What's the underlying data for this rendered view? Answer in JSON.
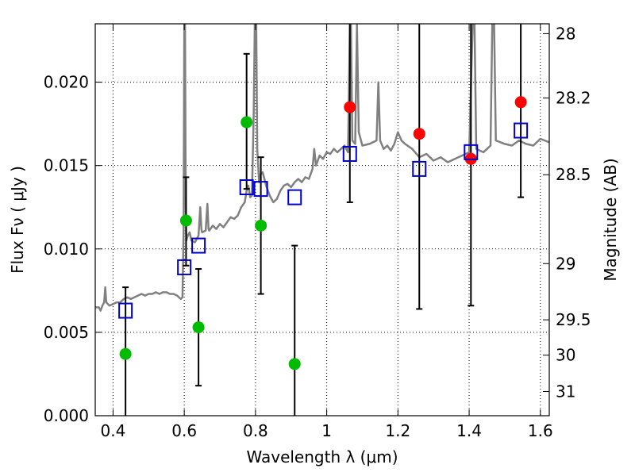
{
  "chart_data": {
    "type": "scatter",
    "xlabel": "Wavelength  λ (μm)",
    "ylabel": "Flux  Fν  ( μJy )",
    "ylabel_right": "Magnitude (AB)",
    "xlim": [
      0.35,
      1.625
    ],
    "ylim": [
      0.0,
      0.0235
    ],
    "grid": true,
    "x_ticks": [
      {
        "value": 0.4,
        "label": "0.4"
      },
      {
        "value": 0.6,
        "label": "0.6"
      },
      {
        "value": 0.8,
        "label": "0.8"
      },
      {
        "value": 1.0,
        "label": "1"
      },
      {
        "value": 1.2,
        "label": "1.2"
      },
      {
        "value": 1.4,
        "label": "1.4"
      },
      {
        "value": 1.6,
        "label": "1.6"
      }
    ],
    "y_ticks": [
      {
        "value": 0.0,
        "label": "0.000"
      },
      {
        "value": 0.005,
        "label": "0.005"
      },
      {
        "value": 0.01,
        "label": "0.010"
      },
      {
        "value": 0.015,
        "label": "0.015"
      },
      {
        "value": 0.02,
        "label": "0.020"
      }
    ],
    "right_ticks": [
      {
        "flux": 0.02291,
        "label": "28"
      },
      {
        "flux": 0.01905,
        "label": "28.2"
      },
      {
        "flux": 0.01445,
        "label": "28.5"
      },
      {
        "flux": 0.00912,
        "label": "29"
      },
      {
        "flux": 0.00575,
        "label": "29.5"
      },
      {
        "flux": 0.00363,
        "label": "30"
      },
      {
        "flux": 0.00145,
        "label": "31"
      }
    ],
    "colors": {
      "model": "#808080",
      "observed": "#00bb00",
      "upper": "#ff0000",
      "synthetic": "#0000cc",
      "errorbar": "#000000"
    },
    "model_spectrum": [
      [
        0.35,
        0.0065
      ],
      [
        0.36,
        0.0065
      ],
      [
        0.365,
        0.0063
      ],
      [
        0.37,
        0.0066
      ],
      [
        0.375,
        0.0068
      ],
      [
        0.378,
        0.0077
      ],
      [
        0.381,
        0.0068
      ],
      [
        0.39,
        0.0066
      ],
      [
        0.4,
        0.0067
      ],
      [
        0.41,
        0.0068
      ],
      [
        0.42,
        0.0068
      ],
      [
        0.43,
        0.007
      ],
      [
        0.44,
        0.0071
      ],
      [
        0.45,
        0.007
      ],
      [
        0.46,
        0.0071
      ],
      [
        0.47,
        0.0072
      ],
      [
        0.48,
        0.0073
      ],
      [
        0.49,
        0.0072
      ],
      [
        0.5,
        0.0073
      ],
      [
        0.51,
        0.0073
      ],
      [
        0.52,
        0.0074
      ],
      [
        0.53,
        0.0073
      ],
      [
        0.54,
        0.0074
      ],
      [
        0.55,
        0.0074
      ],
      [
        0.56,
        0.0073
      ],
      [
        0.57,
        0.0073
      ],
      [
        0.58,
        0.0072
      ],
      [
        0.59,
        0.007
      ],
      [
        0.595,
        0.0071
      ],
      [
        0.598,
        0.011
      ],
      [
        0.6,
        0.0235
      ],
      [
        0.602,
        0.0235
      ],
      [
        0.604,
        0.0125
      ],
      [
        0.606,
        0.0105
      ],
      [
        0.61,
        0.0108
      ],
      [
        0.615,
        0.011
      ],
      [
        0.62,
        0.0105
      ],
      [
        0.63,
        0.0104
      ],
      [
        0.64,
        0.0108
      ],
      [
        0.645,
        0.0125
      ],
      [
        0.648,
        0.0112
      ],
      [
        0.65,
        0.011
      ],
      [
        0.66,
        0.0111
      ],
      [
        0.665,
        0.0127
      ],
      [
        0.668,
        0.0112
      ],
      [
        0.67,
        0.0111
      ],
      [
        0.68,
        0.0114
      ],
      [
        0.69,
        0.0112
      ],
      [
        0.7,
        0.0115
      ],
      [
        0.71,
        0.0113
      ],
      [
        0.72,
        0.0116
      ],
      [
        0.73,
        0.0119
      ],
      [
        0.74,
        0.0118
      ],
      [
        0.75,
        0.012
      ],
      [
        0.76,
        0.0125
      ],
      [
        0.77,
        0.0128
      ],
      [
        0.775,
        0.0135
      ],
      [
        0.78,
        0.0138
      ],
      [
        0.785,
        0.0131
      ],
      [
        0.79,
        0.0132
      ],
      [
        0.795,
        0.018
      ],
      [
        0.798,
        0.0235
      ],
      [
        0.802,
        0.0235
      ],
      [
        0.805,
        0.016
      ],
      [
        0.81,
        0.014
      ],
      [
        0.815,
        0.0145
      ],
      [
        0.82,
        0.0146
      ],
      [
        0.83,
        0.0138
      ],
      [
        0.84,
        0.0132
      ],
      [
        0.85,
        0.0128
      ],
      [
        0.86,
        0.013
      ],
      [
        0.87,
        0.0135
      ],
      [
        0.88,
        0.0138
      ],
      [
        0.89,
        0.0139
      ],
      [
        0.9,
        0.0137
      ],
      [
        0.91,
        0.014
      ],
      [
        0.92,
        0.0142
      ],
      [
        0.93,
        0.014
      ],
      [
        0.94,
        0.0143
      ],
      [
        0.95,
        0.0142
      ],
      [
        0.96,
        0.0148
      ],
      [
        0.965,
        0.016
      ],
      [
        0.97,
        0.015
      ],
      [
        0.98,
        0.0156
      ],
      [
        0.99,
        0.0154
      ],
      [
        1.0,
        0.0158
      ],
      [
        1.01,
        0.0157
      ],
      [
        1.02,
        0.016
      ],
      [
        1.03,
        0.0158
      ],
      [
        1.04,
        0.016
      ],
      [
        1.05,
        0.0162
      ],
      [
        1.06,
        0.0158
      ],
      [
        1.065,
        0.0235
      ],
      [
        1.068,
        0.0235
      ],
      [
        1.072,
        0.0165
      ],
      [
        1.08,
        0.0163
      ],
      [
        1.085,
        0.0235
      ],
      [
        1.09,
        0.017
      ],
      [
        1.1,
        0.0162
      ],
      [
        1.12,
        0.0163
      ],
      [
        1.14,
        0.0165
      ],
      [
        1.145,
        0.02
      ],
      [
        1.15,
        0.0165
      ],
      [
        1.16,
        0.016
      ],
      [
        1.17,
        0.0162
      ],
      [
        1.18,
        0.0159
      ],
      [
        1.19,
        0.0163
      ],
      [
        1.2,
        0.017
      ],
      [
        1.21,
        0.0165
      ],
      [
        1.22,
        0.0163
      ],
      [
        1.24,
        0.016
      ],
      [
        1.26,
        0.0155
      ],
      [
        1.28,
        0.0157
      ],
      [
        1.3,
        0.0153
      ],
      [
        1.32,
        0.0155
      ],
      [
        1.34,
        0.0152
      ],
      [
        1.36,
        0.0154
      ],
      [
        1.38,
        0.0156
      ],
      [
        1.4,
        0.0158
      ],
      [
        1.41,
        0.0235
      ],
      [
        1.415,
        0.0235
      ],
      [
        1.42,
        0.016
      ],
      [
        1.44,
        0.0158
      ],
      [
        1.46,
        0.0162
      ],
      [
        1.465,
        0.0235
      ],
      [
        1.47,
        0.0235
      ],
      [
        1.475,
        0.0165
      ],
      [
        1.5,
        0.0163
      ],
      [
        1.52,
        0.0162
      ],
      [
        1.54,
        0.0165
      ],
      [
        1.56,
        0.0163
      ],
      [
        1.58,
        0.0162
      ],
      [
        1.6,
        0.0166
      ],
      [
        1.625,
        0.0164
      ]
    ],
    "observed_points": [
      {
        "x": 0.435,
        "y": 0.0037,
        "yerr": [
          0.0,
          0.0077
        ]
      },
      {
        "x": 0.605,
        "y": 0.0117,
        "yerr": [
          0.009,
          0.0143
        ]
      },
      {
        "x": 0.64,
        "y": 0.0053,
        "yerr": [
          0.0018,
          0.0088
        ]
      },
      {
        "x": 0.775,
        "y": 0.0176,
        "yerr": [
          0.0136,
          0.0217
        ]
      },
      {
        "x": 0.815,
        "y": 0.0114,
        "yerr": [
          0.0073,
          0.0155
        ]
      },
      {
        "x": 0.91,
        "y": 0.0031,
        "yerr": [
          0.0,
          0.0102
        ]
      }
    ],
    "upper_points": [
      {
        "x": 1.065,
        "y": 0.0185,
        "yerr": [
          0.0128,
          0.0235
        ]
      },
      {
        "x": 1.26,
        "y": 0.0169,
        "yerr": [
          0.0064,
          0.0235
        ]
      },
      {
        "x": 1.405,
        "y": 0.0154,
        "yerr": [
          0.0066,
          0.0235
        ]
      },
      {
        "x": 1.545,
        "y": 0.0188,
        "yerr": [
          0.0131,
          0.0235
        ]
      }
    ],
    "synthetic_points": [
      {
        "x": 0.435,
        "y": 0.0063
      },
      {
        "x": 0.6,
        "y": 0.0089
      },
      {
        "x": 0.64,
        "y": 0.0102
      },
      {
        "x": 0.775,
        "y": 0.0137
      },
      {
        "x": 0.815,
        "y": 0.0136
      },
      {
        "x": 0.91,
        "y": 0.0131
      },
      {
        "x": 1.065,
        "y": 0.0157
      },
      {
        "x": 1.26,
        "y": 0.0148
      },
      {
        "x": 1.405,
        "y": 0.0158
      },
      {
        "x": 1.545,
        "y": 0.0171
      }
    ]
  }
}
